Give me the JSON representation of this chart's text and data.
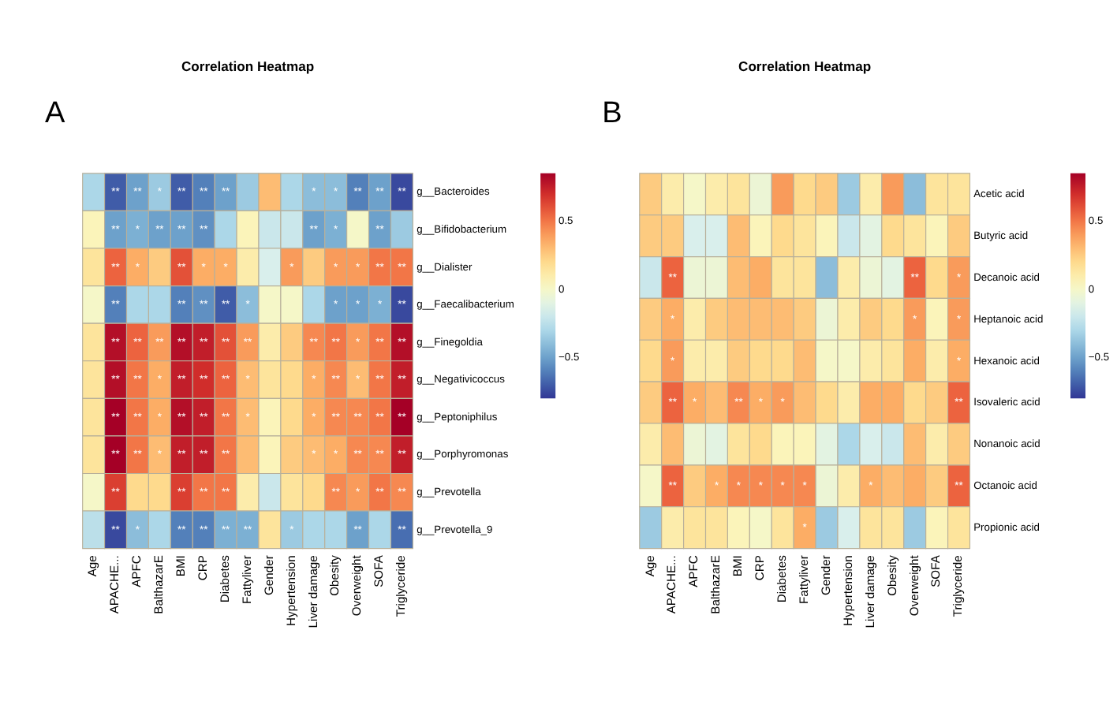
{
  "chart_data": [
    {
      "type": "heatmap",
      "title": "Correlation Heatmap",
      "annotations": [
        "A"
      ],
      "categories": [
        "Age",
        "APACHE...",
        "APFC",
        "BalthazarE",
        "BMI",
        "CRP",
        "Diabetes",
        "Fattyliver",
        "Gender",
        "Hypertension",
        "Liver damage",
        "Obesity",
        "Overweight",
        "SOFA",
        "Triglyceride"
      ],
      "y_categories": [
        "g__Bacteroides",
        "g__Bifidobacterium",
        "g__Dialister",
        "g__Faecalibacterium",
        "g__Finegoldia",
        "g__Negativicoccus",
        "g__Peptoniphilus",
        "g__Porphyromonas",
        "g__Prevotella",
        "g__Prevotella_9"
      ],
      "cells": [
        [
          -0.3,
          -0.7,
          -0.5,
          -0.35,
          -0.7,
          -0.6,
          -0.5,
          -0.35,
          0.3,
          -0.3,
          -0.4,
          -0.4,
          -0.6,
          -0.5,
          -0.75
        ],
        [
          0.05,
          -0.5,
          -0.45,
          -0.5,
          -0.5,
          -0.55,
          -0.3,
          0.05,
          -0.2,
          -0.2,
          -0.5,
          -0.45,
          0.0,
          -0.5,
          -0.35
        ],
        [
          0.15,
          0.55,
          0.35,
          0.25,
          0.6,
          0.35,
          0.35,
          0.1,
          -0.15,
          0.4,
          0.25,
          0.4,
          0.4,
          0.5,
          0.5
        ],
        [
          0.0,
          -0.6,
          -0.3,
          -0.3,
          -0.6,
          -0.55,
          -0.7,
          -0.4,
          0.0,
          0.0,
          -0.3,
          -0.5,
          -0.5,
          -0.45,
          -0.75
        ],
        [
          0.15,
          0.8,
          0.55,
          0.4,
          0.8,
          0.75,
          0.6,
          0.4,
          0.1,
          0.25,
          0.45,
          0.5,
          0.4,
          0.5,
          0.8
        ],
        [
          0.15,
          0.8,
          0.5,
          0.35,
          0.75,
          0.7,
          0.55,
          0.3,
          0.15,
          0.2,
          0.35,
          0.45,
          0.3,
          0.5,
          0.75
        ],
        [
          0.15,
          0.85,
          0.5,
          0.35,
          0.8,
          0.75,
          0.5,
          0.3,
          0.05,
          0.2,
          0.35,
          0.45,
          0.45,
          0.5,
          0.85
        ],
        [
          0.15,
          0.85,
          0.5,
          0.3,
          0.75,
          0.75,
          0.5,
          0.3,
          0.05,
          0.25,
          0.3,
          0.35,
          0.45,
          0.45,
          0.75
        ],
        [
          0.0,
          0.65,
          0.2,
          0.2,
          0.65,
          0.5,
          0.5,
          0.1,
          -0.2,
          0.15,
          0.2,
          0.45,
          0.4,
          0.5,
          0.45
        ],
        [
          -0.25,
          -0.75,
          -0.4,
          -0.3,
          -0.6,
          -0.6,
          -0.45,
          -0.45,
          0.15,
          -0.35,
          -0.3,
          -0.3,
          -0.5,
          -0.3,
          -0.65
        ]
      ],
      "cell_labels": [
        [
          null,
          "**",
          "**",
          "*",
          "**",
          "**",
          "**",
          null,
          null,
          null,
          "*",
          "*",
          "**",
          "**",
          "**"
        ],
        [
          null,
          "**",
          "*",
          "**",
          "**",
          "**",
          null,
          null,
          null,
          null,
          "**",
          "*",
          null,
          "**",
          null
        ],
        [
          null,
          "**",
          "*",
          null,
          "**",
          "*",
          "*",
          null,
          null,
          "*",
          null,
          "*",
          "*",
          "**",
          "**"
        ],
        [
          null,
          "**",
          null,
          null,
          "**",
          "**",
          "**",
          "*",
          null,
          null,
          null,
          "*",
          "*",
          "*",
          "**"
        ],
        [
          null,
          "**",
          "**",
          "**",
          "**",
          "**",
          "**",
          "**",
          null,
          null,
          "**",
          "**",
          "*",
          "**",
          "**"
        ],
        [
          null,
          "**",
          "**",
          "*",
          "**",
          "**",
          "**",
          "*",
          null,
          null,
          "*",
          "**",
          "*",
          "**",
          "**"
        ],
        [
          null,
          "**",
          "**",
          "*",
          "**",
          "**",
          "**",
          "*",
          null,
          null,
          "*",
          "**",
          "**",
          "**",
          "**"
        ],
        [
          null,
          "**",
          "**",
          "*",
          "**",
          "**",
          "**",
          null,
          null,
          null,
          "*",
          "*",
          "**",
          "**",
          "**"
        ],
        [
          null,
          "**",
          null,
          null,
          "**",
          "**",
          "**",
          null,
          null,
          null,
          null,
          "**",
          "*",
          "**",
          "**"
        ],
        [
          null,
          "**",
          "*",
          null,
          "**",
          "**",
          "**",
          "**",
          null,
          "*",
          null,
          null,
          "**",
          null,
          "**"
        ]
      ],
      "clim": [
        -0.8,
        0.85
      ],
      "cticks": [
        -0.5,
        0,
        0.5
      ]
    },
    {
      "type": "heatmap",
      "title": "Correlation Heatmap",
      "annotations": [
        "B"
      ],
      "categories": [
        "Age",
        "APACHE...",
        "APFC",
        "BalthazarE",
        "BMI",
        "CRP",
        "Diabetes",
        "Fattyliver",
        "Gender",
        "Hypertension",
        "Liver damage",
        "Obesity",
        "Overweight",
        "SOFA",
        "Triglyceride"
      ],
      "y_categories": [
        "Acetic acid",
        "Butyric acid",
        "Decanoic acid",
        "Heptanoic acid",
        "Hexanoic acid",
        "Isovaleric acid",
        "Nonanoic acid",
        "Octanoic acid",
        "Propionic acid"
      ],
      "cells": [
        [
          0.25,
          0.1,
          0.0,
          0.1,
          0.15,
          -0.05,
          0.4,
          0.2,
          0.25,
          -0.35,
          0.1,
          0.4,
          -0.4,
          0.15,
          0.15
        ],
        [
          0.25,
          0.25,
          -0.15,
          -0.15,
          0.3,
          0.05,
          0.2,
          0.15,
          0.05,
          -0.2,
          -0.1,
          0.2,
          0.15,
          0.05,
          0.25
        ],
        [
          -0.2,
          0.55,
          -0.05,
          -0.05,
          0.3,
          0.35,
          0.15,
          0.15,
          -0.4,
          0.1,
          -0.05,
          -0.1,
          0.55,
          0.2,
          0.4
        ],
        [
          0.25,
          0.35,
          0.1,
          0.25,
          0.3,
          0.3,
          0.3,
          0.25,
          -0.05,
          0.1,
          0.25,
          0.2,
          0.4,
          0.05,
          0.4
        ],
        [
          0.2,
          0.4,
          0.1,
          0.1,
          0.25,
          0.2,
          0.2,
          0.3,
          0.0,
          0.0,
          0.1,
          0.15,
          0.35,
          0.1,
          0.35
        ],
        [
          0.25,
          0.55,
          0.35,
          0.3,
          0.45,
          0.35,
          0.4,
          0.3,
          0.2,
          0.1,
          0.35,
          0.35,
          0.2,
          0.25,
          0.55
        ],
        [
          0.1,
          0.3,
          -0.05,
          -0.1,
          0.15,
          0.2,
          0.05,
          0.05,
          -0.1,
          -0.3,
          -0.15,
          -0.2,
          0.3,
          0.1,
          0.25
        ],
        [
          0.0,
          0.55,
          0.25,
          0.35,
          0.45,
          0.45,
          0.45,
          0.45,
          -0.05,
          0.1,
          0.35,
          0.3,
          0.35,
          0.25,
          0.55
        ],
        [
          -0.35,
          0.1,
          0.15,
          0.15,
          0.05,
          0.0,
          0.15,
          0.35,
          -0.35,
          -0.15,
          0.15,
          0.15,
          -0.35,
          0.05,
          0.15
        ]
      ],
      "cell_labels": [
        [
          null,
          null,
          null,
          null,
          null,
          null,
          null,
          null,
          null,
          null,
          null,
          null,
          null,
          null,
          null
        ],
        [
          null,
          null,
          null,
          null,
          null,
          null,
          null,
          null,
          null,
          null,
          null,
          null,
          null,
          null,
          null
        ],
        [
          null,
          "**",
          null,
          null,
          null,
          null,
          null,
          null,
          null,
          null,
          null,
          null,
          "**",
          null,
          "*"
        ],
        [
          null,
          "*",
          null,
          null,
          null,
          null,
          null,
          null,
          null,
          null,
          null,
          null,
          "*",
          null,
          "*"
        ],
        [
          null,
          "*",
          null,
          null,
          null,
          null,
          null,
          null,
          null,
          null,
          null,
          null,
          null,
          null,
          "*"
        ],
        [
          null,
          "**",
          "*",
          null,
          "**",
          "*",
          "*",
          null,
          null,
          null,
          null,
          null,
          null,
          null,
          "**"
        ],
        [
          null,
          null,
          null,
          null,
          null,
          null,
          null,
          null,
          null,
          null,
          null,
          null,
          null,
          null,
          null
        ],
        [
          null,
          "**",
          null,
          "*",
          "*",
          "*",
          "*",
          "*",
          null,
          null,
          "*",
          null,
          null,
          null,
          "**"
        ],
        [
          null,
          null,
          null,
          null,
          null,
          null,
          null,
          "*",
          null,
          null,
          null,
          null,
          null,
          null,
          null
        ]
      ],
      "clim": [
        -0.8,
        0.85
      ],
      "cticks": [
        -0.5,
        0,
        0.5
      ]
    }
  ]
}
